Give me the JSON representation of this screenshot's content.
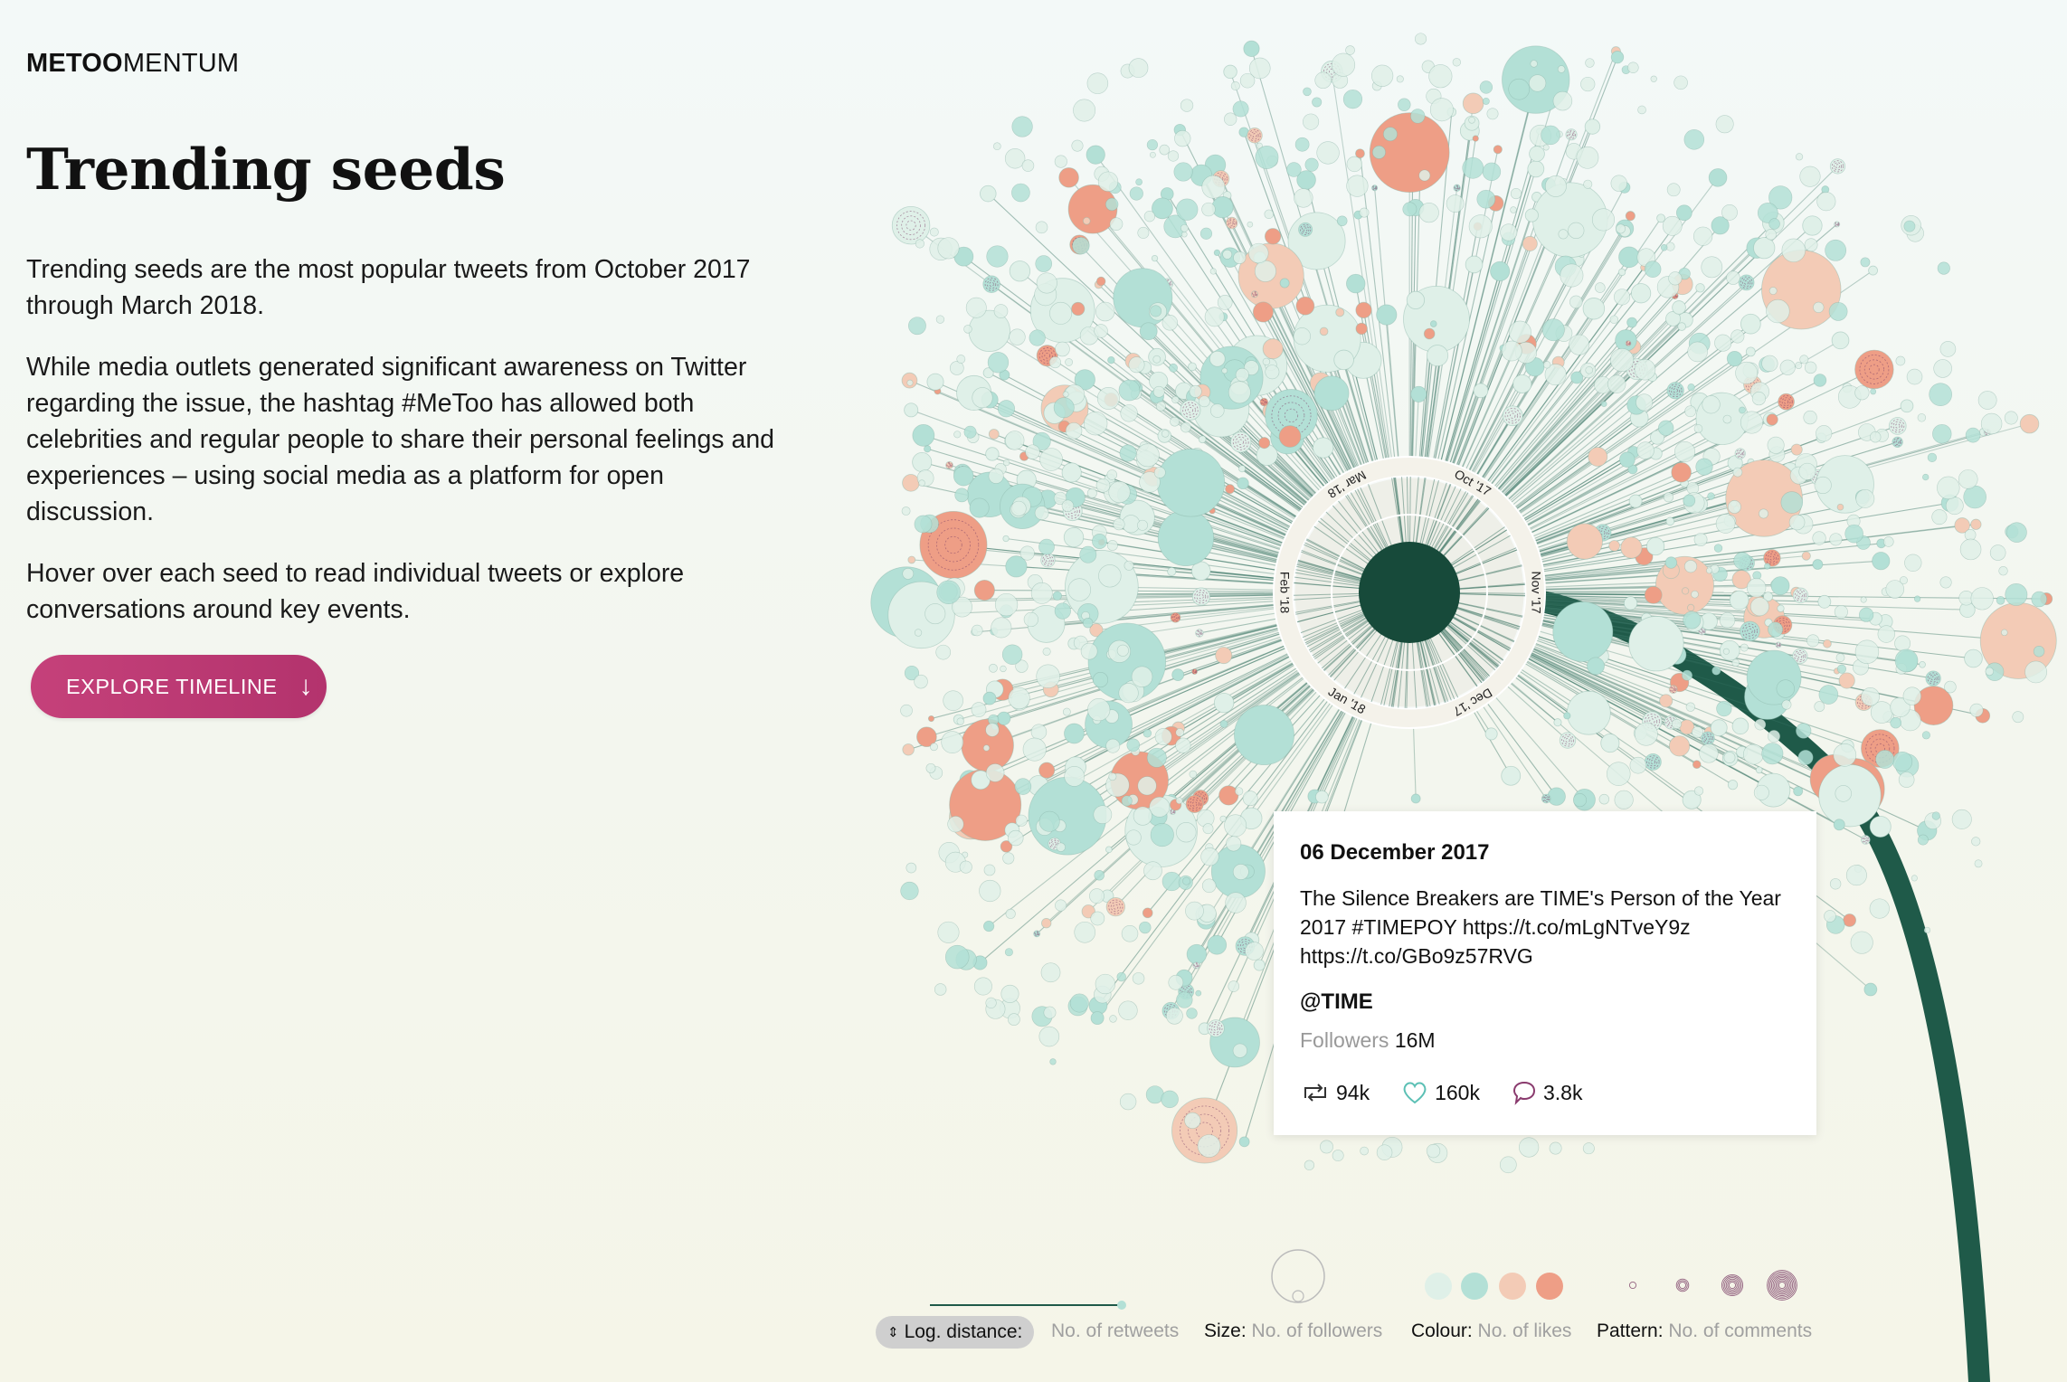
{
  "brand": {
    "bold": "METOO",
    "rest": "MENTUM"
  },
  "page": {
    "title": "Trending seeds",
    "paragraphs": [
      "Trending seeds are the most popular tweets from October 2017 through March 2018.",
      "While media outlets generated significant awareness on Twitter regarding the issue, the hashtag #MeToo has allowed both celebrities and regular people to share their personal feelings and experiences – using social media as a platform for open discussion.",
      "Hover over each seed to read individual tweets or explore conversations around key events."
    ],
    "cta_label": "EXPLORE TIMELINE",
    "cta_icon": "down-arrow-icon"
  },
  "ring": {
    "months": [
      "Oct '17",
      "Nov '17",
      "Dec '17",
      "Jan '18",
      "Feb '18",
      "Mar '18"
    ]
  },
  "tooltip": {
    "date": "06 December 2017",
    "text": "The Silence Breakers are TIME's Person of the Year 2017 #TIMEPOY https://t.co/mLgNTveY9z https://t.co/GBo9z57RVG",
    "user": "@TIME",
    "followers_label": "Followers",
    "followers_value": "16M",
    "retweets": "94k",
    "likes": "160k",
    "comments": "3.8k"
  },
  "legend": {
    "distance_label": "Log. distance:",
    "distance_value": "No. of retweets",
    "size_label": "Size:",
    "size_value": "No. of followers",
    "colour_label": "Colour:",
    "colour_value": "No. of likes",
    "pattern_label": "Pattern:",
    "pattern_value": "No. of comments"
  },
  "colors": {
    "accent": "#c0407a",
    "stem": "#1f5a49",
    "core": "#174a3a",
    "seed_light": "#dff0e8",
    "seed_teal": "#b3e0d6",
    "seed_peach": "#f3cbb6",
    "seed_coral": "#ee9e86",
    "pattern_purple": "#7c3f67"
  }
}
